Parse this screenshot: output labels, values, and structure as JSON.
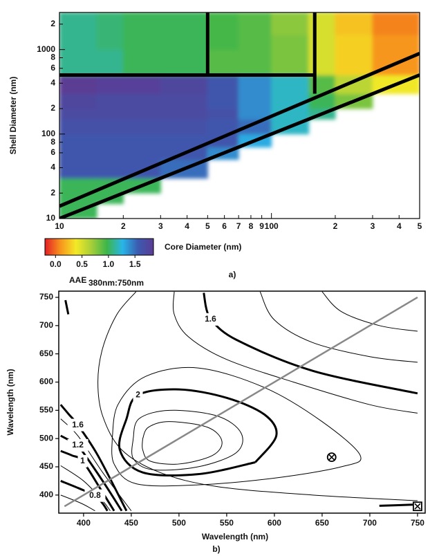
{
  "chart_data": [
    {
      "type": "heatmap",
      "caption": "a)",
      "x_label": "Core Diameter (nm)",
      "y_label": "Shell Diameter (nm)",
      "xscale": "log",
      "yscale": "log",
      "xlim": [
        10,
        500
      ],
      "ylim": [
        10,
        2750
      ],
      "xticks": [
        10,
        {
          "value": 20,
          "label": "2"
        },
        {
          "value": 30,
          "label": "3"
        },
        {
          "value": 40,
          "label": "4"
        },
        {
          "value": 50,
          "label": "5"
        },
        {
          "value": 60,
          "label": "6"
        },
        {
          "value": 70,
          "label": "7"
        },
        {
          "value": 80,
          "label": "8"
        },
        {
          "value": 90,
          "label": "9"
        },
        100,
        {
          "value": 200,
          "label": "2"
        },
        {
          "value": 300,
          "label": "3"
        },
        {
          "value": 400,
          "label": "4"
        },
        {
          "value": 500,
          "label": "5"
        }
      ],
      "yticks": [
        10,
        {
          "value": 20,
          "label": "2"
        },
        {
          "value": 40,
          "label": "4"
        },
        {
          "value": 60,
          "label": "6"
        },
        {
          "value": 80,
          "label": "8"
        },
        100,
        {
          "value": 200,
          "label": "2"
        },
        {
          "value": 400,
          "label": "4"
        },
        {
          "value": 600,
          "label": "6"
        },
        {
          "value": 800,
          "label": "8"
        },
        1000,
        {
          "value": 2000,
          "label": "2"
        }
      ],
      "x_edges": [
        10,
        15,
        20,
        30,
        50,
        70,
        100,
        150,
        200,
        300,
        500
      ],
      "y_edges": [
        10,
        15,
        20,
        30,
        50,
        70,
        100,
        150,
        200,
        300,
        500,
        700,
        1000,
        1500,
        2750
      ],
      "z": [
        [
          1.0,
          null,
          null,
          null,
          null,
          null,
          null,
          null,
          null,
          null
        ],
        [
          1.0,
          1.0,
          null,
          null,
          null,
          null,
          null,
          null,
          null,
          null
        ],
        [
          1.0,
          1.0,
          1.0,
          null,
          null,
          null,
          null,
          null,
          null,
          null
        ],
        [
          1.6,
          1.6,
          1.6,
          1.5,
          null,
          null,
          null,
          null,
          null,
          null
        ],
        [
          1.6,
          1.6,
          1.6,
          1.6,
          1.4,
          null,
          null,
          null,
          null,
          null
        ],
        [
          1.6,
          1.6,
          1.6,
          1.6,
          1.6,
          1.3,
          null,
          null,
          null,
          null
        ],
        [
          1.65,
          1.65,
          1.65,
          1.65,
          1.6,
          1.5,
          1.2,
          null,
          null,
          null
        ],
        [
          1.7,
          1.7,
          1.7,
          1.7,
          1.65,
          1.4,
          1.2,
          1.1,
          null,
          null
        ],
        [
          1.75,
          1.7,
          1.7,
          1.7,
          1.6,
          1.4,
          1.2,
          1.0,
          0.8,
          null
        ],
        [
          1.85,
          1.8,
          1.8,
          1.75,
          1.6,
          1.4,
          1.2,
          0.9,
          0.6,
          0.4
        ],
        [
          1.1,
          1.1,
          1.0,
          1.0,
          0.9,
          0.9,
          0.8,
          0.5,
          0.3,
          0.1
        ],
        [
          1.1,
          1.1,
          1.0,
          1.0,
          0.9,
          0.9,
          0.8,
          0.5,
          0.3,
          0.1
        ],
        [
          1.1,
          1.05,
          1.0,
          1.0,
          0.95,
          0.9,
          0.8,
          0.5,
          0.3,
          0.1
        ],
        [
          1.1,
          1.05,
          1.0,
          1.0,
          0.95,
          0.9,
          0.75,
          0.5,
          0.25,
          0.05
        ]
      ],
      "zlim": [
        -0.2,
        1.85
      ],
      "colormap": [
        "#e41e26",
        "#f7941d",
        "#f4e927",
        "#a6ce39",
        "#3db54a",
        "#29b6e8",
        "#3b5bb0",
        "#5b3c94"
      ],
      "colorbar_ticks": [
        {
          "value": 0,
          "label": "0.0"
        },
        {
          "value": 0.5,
          "label": "0.5"
        },
        {
          "value": 1,
          "label": "1.0"
        },
        {
          "value": 1.5,
          "label": "1.5"
        }
      ],
      "colorbar_label": "AAE",
      "colorbar_label_sub": "380nm:750nm",
      "line_color": "#000000",
      "lines": [
        {
          "x": [
            10,
            500
          ],
          "y": [
            10,
            500
          ]
        },
        {
          "x": [
            10,
            500
          ],
          "y": [
            14,
            900
          ]
        },
        {
          "x": [
            10,
            160
          ],
          "y": [
            500,
            500
          ]
        },
        {
          "x": [
            50,
            50
          ],
          "y": [
            500,
            2750
          ]
        },
        {
          "x": [
            160,
            160
          ],
          "y": [
            300,
            2750
          ]
        }
      ]
    },
    {
      "type": "contour",
      "caption": "b)",
      "x_label": "Wavelength (nm)",
      "y_label": "Wavelength (nm)",
      "xlim": [
        374,
        758
      ],
      "ylim": [
        368,
        761
      ],
      "xticks": [
        400,
        450,
        500,
        550,
        600,
        650,
        700,
        750
      ],
      "yticks": [
        400,
        450,
        500,
        550,
        600,
        650,
        700,
        750
      ],
      "contours": [
        {
          "level": 2.2,
          "bold": false,
          "labeled": false,
          "x": [
            462,
            468,
            490,
            530,
            545,
            535,
            500,
            470,
            462,
            462
          ],
          "y": [
            500,
            520,
            530,
            520,
            495,
            470,
            455,
            460,
            480,
            500
          ]
        },
        {
          "level": 2.1,
          "bold": false,
          "labeled": false,
          "x": [
            452,
            458,
            490,
            540,
            565,
            560,
            520,
            472,
            452,
            452
          ],
          "y": [
            500,
            535,
            550,
            540,
            510,
            475,
            450,
            445,
            465,
            500
          ]
        },
        {
          "level": 2,
          "bold": true,
          "labeled": true,
          "x": [
            580,
            602,
            590,
            550,
            500,
            457,
            445,
            438,
            462,
            520,
            580
          ],
          "y": [
            458,
            505,
            542,
            572,
            587,
            577,
            535,
            480,
            440,
            437,
            458
          ]
        },
        {
          "level": 1.9,
          "bold": false,
          "labeled": false,
          "x": [
            430,
            436,
            465,
            520,
            590,
            650,
            690,
            670,
            600,
            520,
            455,
            432,
            430
          ],
          "y": [
            500,
            560,
            610,
            625,
            590,
            530,
            470,
            450,
            430,
            418,
            420,
            455,
            500
          ]
        },
        {
          "level": 1.8,
          "bold": false,
          "labeled": false,
          "x": [
            455,
            435,
            420,
            415,
            420,
            440,
            480,
            540,
            640,
            750
          ],
          "y": [
            760,
            720,
            660,
            600,
            540,
            480,
            440,
            415,
            400,
            390
          ]
        },
        {
          "level": 1.7,
          "bold": false,
          "labeled": false,
          "x": [
            495,
            495,
            510,
            550,
            620,
            700,
            750
          ],
          "y": [
            760,
            720,
            680,
            640,
            600,
            560,
            545
          ]
        },
        {
          "level": 1.6,
          "bold": true,
          "labeled": true,
          "x": [
            526,
            528,
            530,
            533,
            560,
            640,
            750
          ],
          "y": [
            758,
            735,
            722,
            711,
            675,
            620,
            580
          ]
        },
        {
          "level": 1.5,
          "bold": false,
          "labeled": false,
          "x": [
            585,
            600,
            640,
            700,
            750
          ],
          "y": [
            760,
            710,
            670,
            645,
            635
          ]
        },
        {
          "level": 1.4,
          "bold": false,
          "labeled": false,
          "x": [
            650,
            670,
            710,
            750
          ],
          "y": [
            760,
            725,
            700,
            690
          ]
        },
        {
          "level": 1.6,
          "bold": true,
          "labeled": false,
          "x": [
            384,
            381
          ],
          "y": [
            720,
            745
          ]
        },
        {
          "level": 2,
          "bold": true,
          "labeled": false,
          "x": [
            710,
            745
          ],
          "y": [
            381,
            383
          ]
        },
        {
          "level": 1.6,
          "bold": true,
          "labeled": true,
          "x": [
            376,
            385,
            394,
            415,
            445
          ],
          "y": [
            560,
            542,
            524,
            470,
            372
          ]
        },
        {
          "level": 1.4,
          "bold": false,
          "labeled": false,
          "x": [
            376,
            394,
            420,
            450
          ],
          "y": [
            535,
            505,
            440,
            372
          ]
        },
        {
          "level": 1.2,
          "bold": true,
          "labeled": true,
          "x": [
            376,
            385,
            394,
            420,
            440
          ],
          "y": [
            505,
            497,
            488,
            425,
            372
          ]
        },
        {
          "level": 1,
          "bold": true,
          "labeled": true,
          "x": [
            376,
            388,
            399,
            418,
            432
          ],
          "y": [
            478,
            470,
            460,
            410,
            372
          ]
        },
        {
          "level": 0.9,
          "bold": false,
          "labeled": false,
          "x": [
            376,
            400,
            420,
            428
          ],
          "y": [
            452,
            425,
            390,
            372
          ]
        },
        {
          "level": 0.8,
          "bold": true,
          "labeled": true,
          "x": [
            376,
            395,
            412,
            420,
            425
          ],
          "y": [
            425,
            412,
            399,
            385,
            372
          ]
        },
        {
          "level": 0.7,
          "bold": false,
          "labeled": false,
          "x": [
            376,
            398,
            412
          ],
          "y": [
            400,
            385,
            372
          ]
        }
      ],
      "reference_line": {
        "x": [
          380,
          750
        ],
        "y": [
          380,
          750
        ],
        "color": "#888888"
      },
      "markers": [
        {
          "x": 660,
          "y": 467,
          "symbol": "circle-x"
        },
        {
          "x": 750,
          "y": 380,
          "symbol": "square-x"
        }
      ]
    }
  ]
}
